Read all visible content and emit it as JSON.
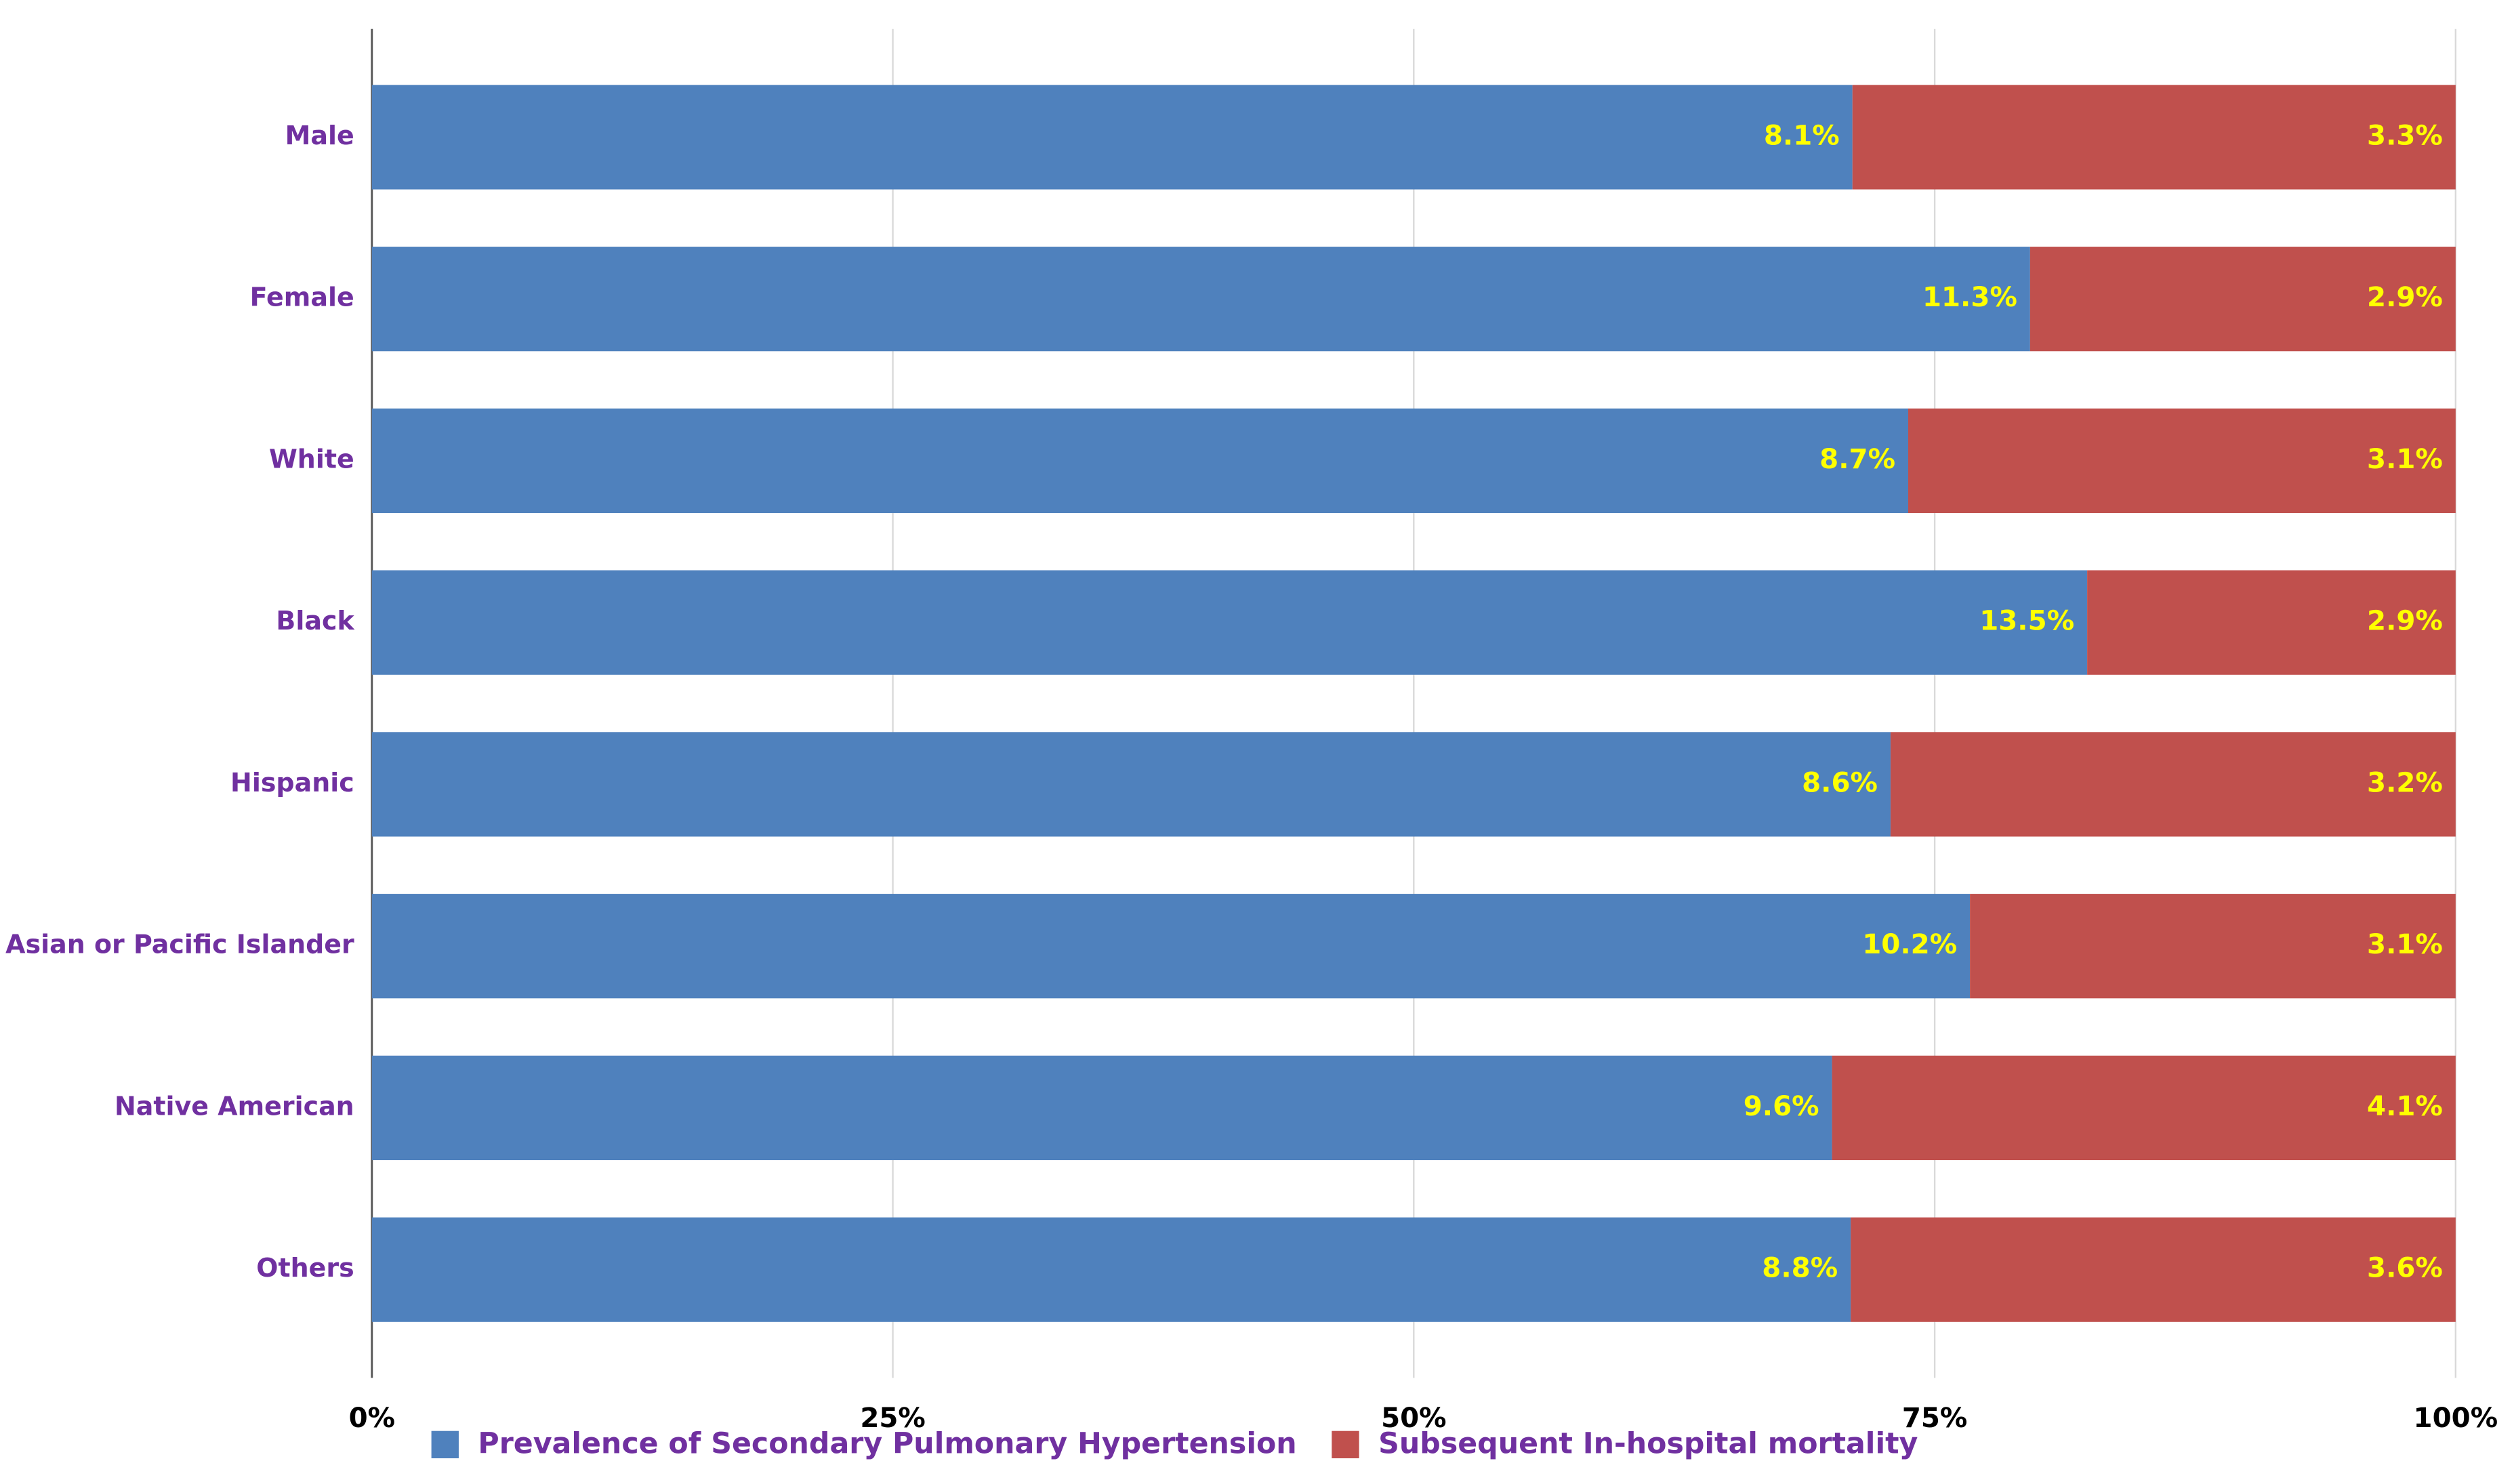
{
  "chart_data": {
    "type": "bar",
    "orientation": "horizontal",
    "stacking": "percent",
    "categories": [
      "Male",
      "Female",
      "White",
      "Black",
      "Hispanic",
      "Asian or Pacific Islander",
      "Native American",
      "Others"
    ],
    "series": [
      {
        "name": "Prevalence of Secondary Pulmonary Hypertension",
        "color": "#4f81bd",
        "values": [
          8.1,
          11.3,
          8.7,
          13.5,
          8.6,
          10.2,
          9.6,
          8.8
        ],
        "value_labels": [
          "8.1%",
          "11.3%",
          "8.7%",
          "13.5%",
          "8.6%",
          "10.2%",
          "9.6%",
          "8.8%"
        ]
      },
      {
        "name": "Subsequent In-hospital mortality",
        "color": "#c0504d",
        "values": [
          3.3,
          2.9,
          3.1,
          2.9,
          3.2,
          3.1,
          4.1,
          3.6
        ],
        "value_labels": [
          "3.3%",
          "2.9%",
          "3.1%",
          "2.9%",
          "3.2%",
          "3.1%",
          "4.1%",
          "3.6%"
        ]
      }
    ],
    "xlim": [
      0,
      100
    ],
    "xticks": [
      {
        "value": 0,
        "label": "0%"
      },
      {
        "value": 25,
        "label": "25%"
      },
      {
        "value": 50,
        "label": "50%"
      },
      {
        "value": 75,
        "label": "75%"
      },
      {
        "value": 100,
        "label": "100%"
      }
    ],
    "grid": true,
    "legend": "bottom"
  }
}
